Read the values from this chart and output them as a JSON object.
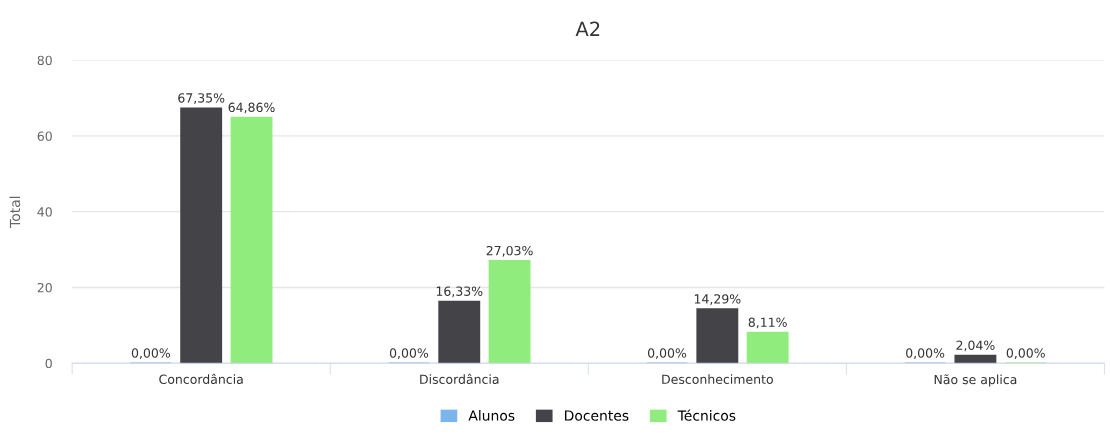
{
  "chart_data": {
    "type": "bar",
    "title": "A2",
    "ylabel": "Total",
    "categories": [
      "Concordância",
      "Discordância",
      "Desconhecimento",
      "Não se aplica"
    ],
    "series": [
      {
        "name": "Alunos",
        "color": "#7cb5ec",
        "values": [
          0,
          0,
          0,
          0
        ],
        "value_labels": [
          "0,00%",
          "0,00%",
          "0,00%",
          "0,00%"
        ]
      },
      {
        "name": "Docentes",
        "color": "#434348",
        "values": [
          67.35,
          16.33,
          14.29,
          2.04
        ],
        "value_labels": [
          "67,35%",
          "16,33%",
          "14,29%",
          "2,04%"
        ]
      },
      {
        "name": "Técnicos",
        "color": "#90ed7d",
        "values": [
          64.86,
          27.03,
          8.11,
          0
        ],
        "value_labels": [
          "64,86%",
          "27,03%",
          "8,11%",
          "0,00%"
        ]
      }
    ],
    "ylim": [
      0,
      80
    ],
    "yticks": [
      0,
      20,
      40,
      60,
      80
    ],
    "grid": "y",
    "legend": "bottom"
  }
}
